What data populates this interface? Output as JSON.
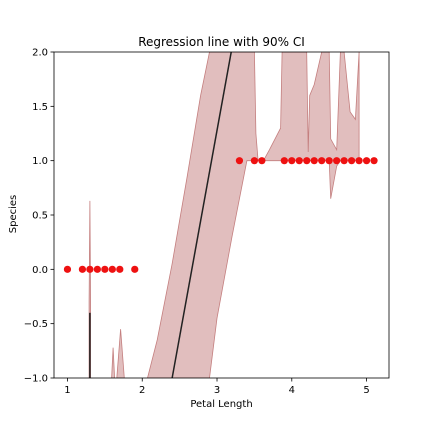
{
  "chart_data": {
    "type": "scatter",
    "title": "Regression line with 90% CI",
    "xlabel": "Petal Length",
    "ylabel": "Species",
    "xlim": [
      0.82,
      5.3
    ],
    "ylim": [
      -1.0,
      2.0
    ],
    "xticks": [
      1,
      2,
      3,
      4,
      5
    ],
    "xtick_labels": [
      "1",
      "2",
      "3",
      "4",
      "5"
    ],
    "yticks": [
      -1.0,
      -0.5,
      0.0,
      0.5,
      1.0,
      1.5,
      2.0
    ],
    "ytick_labels": [
      "−1.0",
      "−0.5",
      "0.0",
      "0.5",
      "1.0",
      "1.5",
      "2.0"
    ],
    "grid": false,
    "colors": {
      "points": "#ee1111",
      "band": "#d7a8a8",
      "band_edge": "#c47f7f",
      "line": "#222222"
    },
    "points": {
      "x": [
        1.0,
        1.2,
        1.3,
        1.4,
        1.5,
        1.6,
        1.7,
        1.9,
        3.3,
        3.5,
        3.6,
        3.9,
        4.0,
        4.1,
        4.2,
        4.3,
        4.4,
        4.5,
        4.6,
        4.7,
        4.8,
        4.9,
        5.0,
        5.1
      ],
      "y": [
        0,
        0,
        0,
        0,
        0,
        0,
        0,
        0,
        1,
        1,
        1,
        1,
        1,
        1,
        1,
        1,
        1,
        1,
        1,
        1,
        1,
        1,
        1,
        1
      ]
    },
    "regression_segments": [
      {
        "x": [
          1.3,
          1.3
        ],
        "y": [
          -1.0,
          -0.4
        ]
      },
      {
        "x": [
          2.4,
          3.19
        ],
        "y": [
          -1.0,
          2.0
        ]
      }
    ],
    "ci_band": [
      {
        "x": [
          1.29,
          1.3,
          1.31
        ],
        "upper": [
          -0.3,
          0.63,
          -0.3
        ],
        "lower": [
          -1.0,
          -1.0,
          -1.0
        ]
      },
      {
        "x": [
          1.59,
          1.61,
          1.63
        ],
        "upper": [
          -1.0,
          -0.72,
          -1.0
        ],
        "lower": [
          -1.0,
          -1.0,
          -1.0
        ]
      },
      {
        "x": [
          1.66,
          1.71,
          1.76
        ],
        "upper": [
          -1.0,
          -0.55,
          -1.0
        ],
        "lower": [
          -1.0,
          -1.0,
          -1.0
        ]
      },
      {
        "x": [
          2.07,
          2.2,
          2.4,
          2.6,
          2.78,
          2.9,
          3.0,
          3.2,
          3.4,
          3.5,
          3.52,
          3.55,
          3.62,
          3.7,
          3.85,
          3.87,
          3.89,
          3.92,
          4.1,
          4.2,
          4.22,
          4.24,
          4.3,
          4.4,
          4.42,
          4.45,
          4.5,
          4.52,
          4.6,
          4.65,
          4.7,
          4.78,
          4.85,
          4.9
        ],
        "upper": [
          -1.0,
          -0.65,
          0.05,
          0.85,
          1.6,
          2.0,
          2.0,
          2.0,
          2.0,
          2.0,
          1.25,
          1.0,
          1.0,
          1.1,
          1.3,
          2.0,
          2.0,
          2.0,
          2.0,
          2.0,
          1.08,
          1.6,
          1.7,
          2.0,
          2.0,
          2.0,
          2.0,
          1.2,
          1.1,
          2.0,
          2.0,
          1.45,
          1.38,
          2.0
        ],
        "lower": [
          -1.0,
          -1.0,
          -1.0,
          -1.0,
          -1.0,
          -1.0,
          -0.45,
          0.3,
          1.0,
          1.0,
          1.0,
          1.0,
          1.0,
          1.0,
          1.0,
          1.0,
          1.0,
          1.0,
          1.0,
          1.0,
          1.0,
          1.0,
          1.0,
          1.0,
          1.0,
          1.0,
          1.0,
          0.65,
          0.95,
          1.0,
          1.0,
          1.0,
          1.0,
          1.0
        ]
      }
    ]
  }
}
